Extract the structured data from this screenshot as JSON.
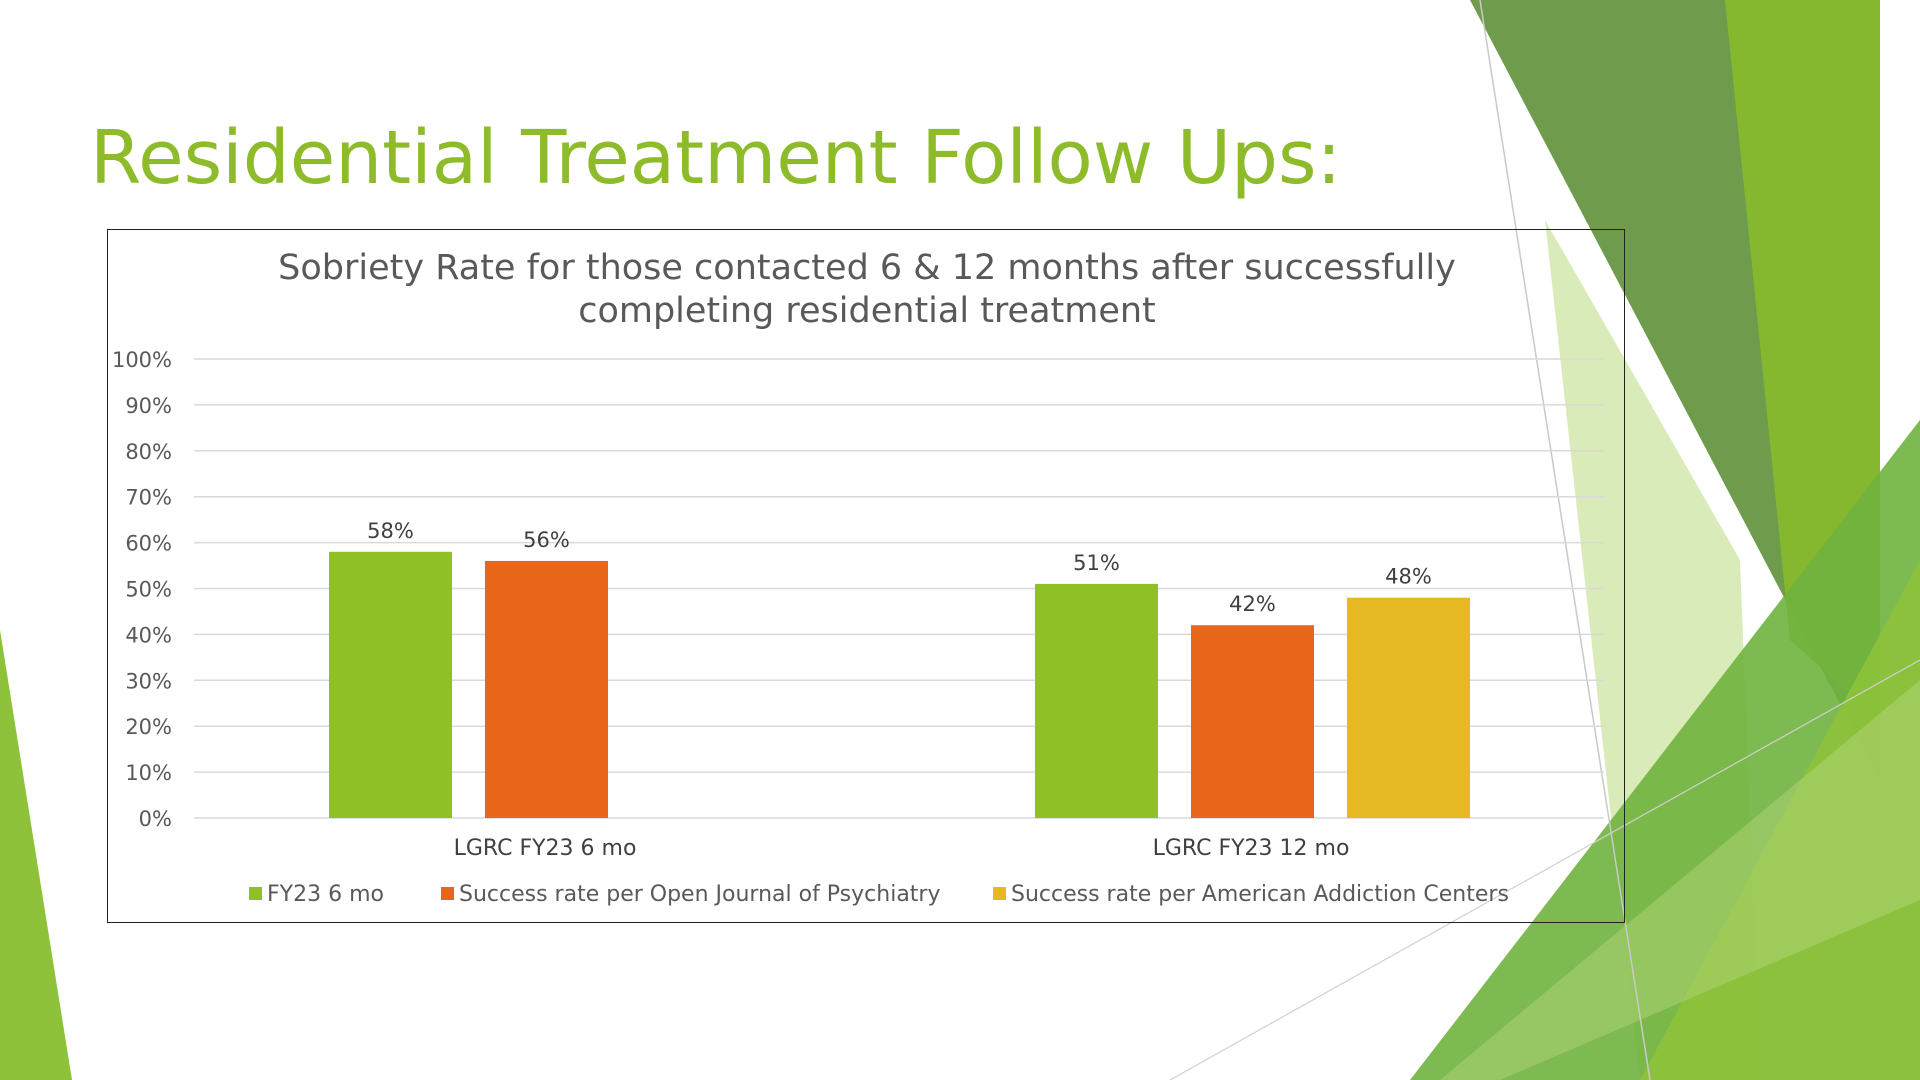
{
  "slide": {
    "title": "Residential Treatment Follow Ups:",
    "title_color": "#8dbb2a"
  },
  "colors": {
    "green": "#8fc127",
    "orange": "#e8661a",
    "gold": "#e6b922",
    "deco_dark_green": "#5a8f3a",
    "deco_light_green": "#9fcb3c"
  },
  "chart_data": {
    "type": "bar",
    "title": "Sobriety Rate for those contacted 6 & 12 months after successfully completing residential treatment",
    "title_lines": [
      "Sobriety Rate for those contacted 6 & 12 months after successfully",
      "completing residential treatment"
    ],
    "categories": [
      "LGRC FY23 6 mo",
      "LGRC FY23 12 mo"
    ],
    "series": [
      {
        "name": "FY23 6 mo",
        "color": "#8fc127",
        "values": [
          58,
          51
        ],
        "labels": [
          "58%",
          "51%"
        ]
      },
      {
        "name": "Success rate per Open Journal of Psychiatry",
        "color": "#e8661a",
        "values": [
          56,
          42
        ],
        "labels": [
          "56%",
          "42%"
        ]
      },
      {
        "name": "Success rate per American Addiction Centers",
        "color": "#e6b922",
        "values": [
          null,
          48
        ],
        "labels": [
          null,
          "48%"
        ]
      }
    ],
    "ylim": [
      0,
      100
    ],
    "yticks": [
      "0%",
      "10%",
      "20%",
      "30%",
      "40%",
      "50%",
      "60%",
      "70%",
      "80%",
      "90%",
      "100%"
    ],
    "xlabel": "",
    "ylabel": "",
    "grid": true,
    "legend_position": "bottom"
  }
}
